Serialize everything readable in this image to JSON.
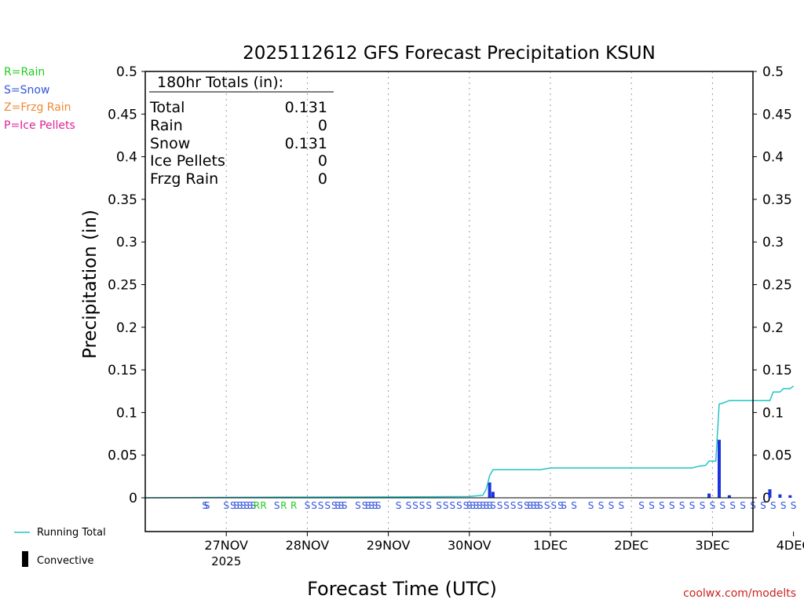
{
  "chart_data": {
    "type": "bar",
    "title": "2025112612 GFS Forecast Precipitation KSUN",
    "xlabel": "Forecast Time (UTC)",
    "ylabel": "Precipitation (in)",
    "ylim": [
      0,
      0.5
    ],
    "xlim_hours": [
      -12,
      168
    ],
    "y_ticks": [
      0,
      0.05,
      0.1,
      0.15,
      0.2,
      0.25,
      0.3,
      0.35,
      0.4,
      0.45,
      0.5
    ],
    "y_tick_labels": [
      "0",
      "0.05",
      "0.1",
      "0.15",
      "0.2",
      "0.25",
      "0.3",
      "0.35",
      "0.4",
      "0.45",
      "0.5"
    ],
    "x_ticks": [
      {
        "label": "27NOV",
        "hour": 12
      },
      {
        "label": "28NOV",
        "hour": 36
      },
      {
        "label": "29NOV",
        "hour": 60
      },
      {
        "label": "30NOV",
        "hour": 84
      },
      {
        "label": "1DEC",
        "hour": 108
      },
      {
        "label": "2DEC",
        "hour": 132
      },
      {
        "label": "3DEC",
        "hour": 156
      },
      {
        "label": "4DEC",
        "hour": 180
      }
    ],
    "x_sub_label": "2025",
    "grid": true,
    "legend": {
      "types": [
        {
          "text": "R=Rain",
          "color": "#22cc22"
        },
        {
          "text": "S=Snow",
          "color": "#3355dd"
        },
        {
          "text": "Z=Frzg Rain",
          "color": "#ee8833"
        },
        {
          "text": "P=Ice Pellets",
          "color": "#dd2299"
        }
      ],
      "running_total": "Running Total",
      "convective": "Convective"
    },
    "totals": {
      "heading": "180hr Totals (in):",
      "rows": [
        {
          "label": "Total",
          "value": "0.131"
        },
        {
          "label": "Rain",
          "value": "0"
        },
        {
          "label": "Snow",
          "value": "0.131"
        },
        {
          "label": "Ice Pellets",
          "value": "0"
        },
        {
          "label": "Frzg Rain",
          "value": "0"
        }
      ]
    },
    "series": [
      {
        "name": "Precipitation",
        "color": "#1a33dd",
        "bars": [
          {
            "hour": 90,
            "value": 0.018
          },
          {
            "hour": 91,
            "value": 0.007
          },
          {
            "hour": 155,
            "value": 0.005
          },
          {
            "hour": 158,
            "value": 0.068
          },
          {
            "hour": 161,
            "value": 0.003
          },
          {
            "hour": 173,
            "value": 0.01
          },
          {
            "hour": 176,
            "value": 0.004
          },
          {
            "hour": 179,
            "value": 0.003
          }
        ]
      },
      {
        "name": "Running Total",
        "color": "#22c4c4",
        "points": [
          [
            -12,
            0.0
          ],
          [
            0,
            0.0003
          ],
          [
            30,
            0.0008
          ],
          [
            60,
            0.001
          ],
          [
            84,
            0.0015
          ],
          [
            88,
            0.003
          ],
          [
            89,
            0.01
          ],
          [
            90,
            0.026
          ],
          [
            91,
            0.033
          ],
          [
            105,
            0.033
          ],
          [
            108,
            0.035
          ],
          [
            150,
            0.035
          ],
          [
            152,
            0.037
          ],
          [
            154,
            0.038
          ],
          [
            155,
            0.043
          ],
          [
            157,
            0.043
          ],
          [
            158,
            0.11
          ],
          [
            159,
            0.111
          ],
          [
            161,
            0.114
          ],
          [
            173,
            0.114
          ],
          [
            174,
            0.124
          ],
          [
            176,
            0.124
          ],
          [
            177,
            0.128
          ],
          [
            179,
            0.128
          ],
          [
            180,
            0.131
          ]
        ]
      }
    ],
    "ptype_markers": [
      {
        "hour": 5.7,
        "type": "S"
      },
      {
        "hour": 6.3,
        "type": "S"
      },
      {
        "hour": 12,
        "type": "S"
      },
      {
        "hour": 14,
        "type": "S"
      },
      {
        "hour": 15,
        "type": "S"
      },
      {
        "hour": 16,
        "type": "S"
      },
      {
        "hour": 17,
        "type": "S"
      },
      {
        "hour": 18,
        "type": "S"
      },
      {
        "hour": 19,
        "type": "S"
      },
      {
        "hour": 20,
        "type": "S"
      },
      {
        "hour": 21,
        "type": "R"
      },
      {
        "hour": 23,
        "type": "R"
      },
      {
        "hour": 27,
        "type": "S"
      },
      {
        "hour": 29,
        "type": "R"
      },
      {
        "hour": 32,
        "type": "R"
      },
      {
        "hour": 36,
        "type": "S"
      },
      {
        "hour": 38,
        "type": "S"
      },
      {
        "hour": 40,
        "type": "S"
      },
      {
        "hour": 42,
        "type": "S"
      },
      {
        "hour": 44,
        "type": "S"
      },
      {
        "hour": 45,
        "type": "S"
      },
      {
        "hour": 46,
        "type": "S"
      },
      {
        "hour": 47,
        "type": "S"
      },
      {
        "hour": 51,
        "type": "S"
      },
      {
        "hour": 53,
        "type": "S"
      },
      {
        "hour": 54,
        "type": "S"
      },
      {
        "hour": 55,
        "type": "S"
      },
      {
        "hour": 56,
        "type": "S"
      },
      {
        "hour": 57,
        "type": "S"
      },
      {
        "hour": 63,
        "type": "S"
      },
      {
        "hour": 66,
        "type": "S"
      },
      {
        "hour": 68,
        "type": "S"
      },
      {
        "hour": 70,
        "type": "S"
      },
      {
        "hour": 72,
        "type": "S"
      },
      {
        "hour": 75,
        "type": "S"
      },
      {
        "hour": 77,
        "type": "S"
      },
      {
        "hour": 79,
        "type": "S"
      },
      {
        "hour": 81,
        "type": "S"
      },
      {
        "hour": 83,
        "type": "S"
      },
      {
        "hour": 84,
        "type": "S"
      },
      {
        "hour": 85,
        "type": "S"
      },
      {
        "hour": 86,
        "type": "S"
      },
      {
        "hour": 87,
        "type": "S"
      },
      {
        "hour": 88,
        "type": "S"
      },
      {
        "hour": 89,
        "type": "S"
      },
      {
        "hour": 90,
        "type": "S"
      },
      {
        "hour": 91,
        "type": "S"
      },
      {
        "hour": 93,
        "type": "S"
      },
      {
        "hour": 95,
        "type": "S"
      },
      {
        "hour": 97,
        "type": "S"
      },
      {
        "hour": 99,
        "type": "S"
      },
      {
        "hour": 101,
        "type": "S"
      },
      {
        "hour": 102,
        "type": "S"
      },
      {
        "hour": 103,
        "type": "S"
      },
      {
        "hour": 104,
        "type": "S"
      },
      {
        "hour": 105,
        "type": "S"
      },
      {
        "hour": 107,
        "type": "S"
      },
      {
        "hour": 109,
        "type": "S"
      },
      {
        "hour": 111,
        "type": "S"
      },
      {
        "hour": 112,
        "type": "S"
      },
      {
        "hour": 115,
        "type": "S"
      },
      {
        "hour": 120,
        "type": "S"
      },
      {
        "hour": 123,
        "type": "S"
      },
      {
        "hour": 126,
        "type": "S"
      },
      {
        "hour": 129,
        "type": "S"
      },
      {
        "hour": 135,
        "type": "S"
      },
      {
        "hour": 138,
        "type": "S"
      },
      {
        "hour": 141,
        "type": "S"
      },
      {
        "hour": 144,
        "type": "S"
      },
      {
        "hour": 147,
        "type": "S"
      },
      {
        "hour": 150,
        "type": "S"
      },
      {
        "hour": 153,
        "type": "S"
      },
      {
        "hour": 156,
        "type": "S"
      },
      {
        "hour": 159,
        "type": "S"
      },
      {
        "hour": 162,
        "type": "S"
      },
      {
        "hour": 165,
        "type": "S"
      },
      {
        "hour": 168,
        "type": "S"
      },
      {
        "hour": 171,
        "type": "S"
      },
      {
        "hour": 174,
        "type": "S"
      },
      {
        "hour": 177,
        "type": "S"
      },
      {
        "hour": 180,
        "type": "S"
      }
    ],
    "credit": "coolwx.com/modelts"
  }
}
